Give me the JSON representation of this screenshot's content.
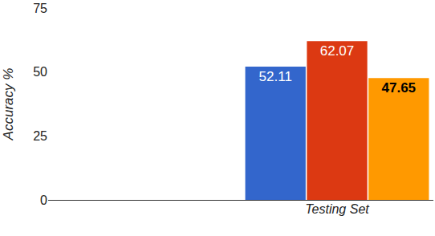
{
  "chart_data": {
    "type": "bar",
    "categories": [
      null,
      "Testing Set"
    ],
    "series": [
      {
        "color": "#3366cc",
        "values": [
          null,
          52.11
        ]
      },
      {
        "color": "#dc3912",
        "values": [
          null,
          62.07
        ]
      },
      {
        "color": "#ff9900",
        "values": [
          null,
          47.65
        ]
      }
    ],
    "y_label": "Accuracy %",
    "ylim": [
      0,
      75
    ],
    "yticks": [
      0,
      25,
      50,
      75
    ],
    "grid": false,
    "data_labels": true
  }
}
